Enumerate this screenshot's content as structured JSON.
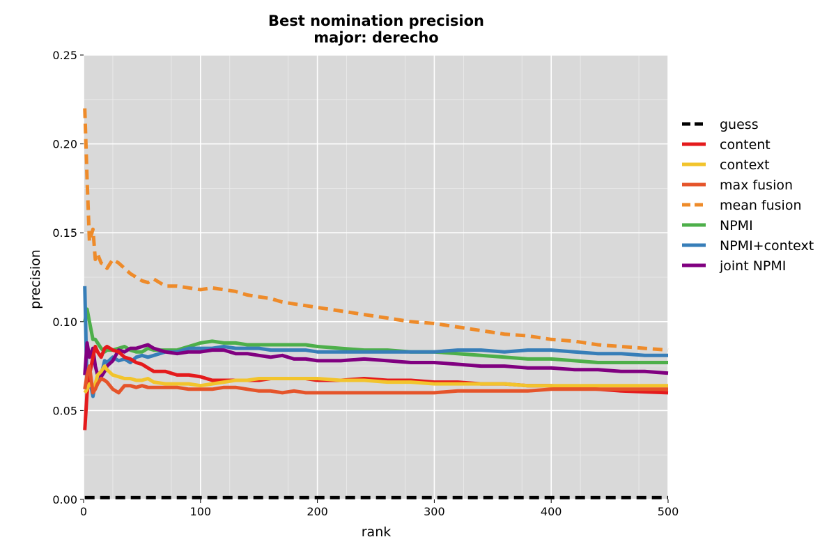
{
  "chart_data": {
    "type": "line",
    "title": "Best nomination precision",
    "subtitle": "major: derecho",
    "xlabel": "rank",
    "ylabel": "precision",
    "xlim": [
      0,
      500
    ],
    "ylim": [
      0,
      0.25
    ],
    "xticks": [
      0,
      100,
      200,
      300,
      400,
      500
    ],
    "xtick_labels": [
      "0",
      "100",
      "200",
      "300",
      "400",
      "500"
    ],
    "yticks": [
      0.0,
      0.05,
      0.1,
      0.15,
      0.2,
      0.25
    ],
    "ytick_labels": [
      "0.00",
      "0.05",
      "0.10",
      "0.15",
      "0.20",
      "0.25"
    ],
    "grid": true,
    "legend_position": "outside-right",
    "x": [
      1,
      3,
      5,
      8,
      10,
      12,
      15,
      18,
      20,
      25,
      30,
      35,
      40,
      45,
      50,
      55,
      60,
      70,
      80,
      90,
      100,
      110,
      120,
      130,
      140,
      150,
      160,
      170,
      180,
      190,
      200,
      220,
      240,
      260,
      280,
      300,
      320,
      340,
      360,
      380,
      400,
      420,
      440,
      460,
      480,
      500
    ],
    "series": [
      {
        "name": "guess",
        "color": "#000000",
        "dash": true,
        "values": [
          0.001,
          0.001,
          0.001,
          0.001,
          0.001,
          0.001,
          0.001,
          0.001,
          0.001,
          0.001,
          0.001,
          0.001,
          0.001,
          0.001,
          0.001,
          0.001,
          0.001,
          0.001,
          0.001,
          0.001,
          0.001,
          0.001,
          0.001,
          0.001,
          0.001,
          0.001,
          0.001,
          0.001,
          0.001,
          0.001,
          0.001,
          0.001,
          0.001,
          0.001,
          0.001,
          0.001,
          0.001,
          0.001,
          0.001,
          0.001,
          0.001,
          0.001,
          0.001,
          0.001,
          0.001,
          0.001
        ]
      },
      {
        "name": "content",
        "color": "#e41a1c",
        "dash": false,
        "values": [
          0.039,
          0.06,
          0.07,
          0.08,
          0.086,
          0.083,
          0.08,
          0.085,
          0.086,
          0.084,
          0.083,
          0.08,
          0.079,
          0.077,
          0.076,
          0.074,
          0.072,
          0.072,
          0.07,
          0.07,
          0.069,
          0.067,
          0.067,
          0.067,
          0.067,
          0.067,
          0.068,
          0.068,
          0.068,
          0.068,
          0.067,
          0.067,
          0.068,
          0.067,
          0.067,
          0.066,
          0.066,
          0.065,
          0.065,
          0.064,
          0.064,
          0.063,
          0.062,
          0.061,
          0.0605,
          0.06
        ]
      },
      {
        "name": "context",
        "color": "#f2c42c",
        "dash": false,
        "values": [
          0.06,
          0.062,
          0.065,
          0.063,
          0.065,
          0.07,
          0.072,
          0.075,
          0.073,
          0.07,
          0.069,
          0.068,
          0.068,
          0.067,
          0.067,
          0.068,
          0.066,
          0.065,
          0.065,
          0.065,
          0.064,
          0.065,
          0.066,
          0.067,
          0.067,
          0.068,
          0.068,
          0.068,
          0.068,
          0.068,
          0.068,
          0.067,
          0.067,
          0.066,
          0.066,
          0.065,
          0.065,
          0.065,
          0.065,
          0.064,
          0.064,
          0.064,
          0.064,
          0.064,
          0.064,
          0.064
        ]
      },
      {
        "name": "max fusion",
        "color": "#e5542a",
        "dash": false,
        "values": [
          0.062,
          0.07,
          0.075,
          0.06,
          0.062,
          0.065,
          0.068,
          0.067,
          0.066,
          0.062,
          0.06,
          0.064,
          0.064,
          0.063,
          0.064,
          0.063,
          0.063,
          0.063,
          0.063,
          0.062,
          0.062,
          0.062,
          0.063,
          0.063,
          0.062,
          0.061,
          0.061,
          0.06,
          0.061,
          0.06,
          0.06,
          0.06,
          0.06,
          0.06,
          0.06,
          0.06,
          0.061,
          0.061,
          0.061,
          0.061,
          0.062,
          0.062,
          0.062,
          0.062,
          0.062,
          0.062
        ]
      },
      {
        "name": "mean fusion",
        "color": "#ee8b2a",
        "dash": true,
        "values": [
          0.22,
          0.18,
          0.145,
          0.152,
          0.135,
          0.138,
          0.133,
          0.132,
          0.13,
          0.135,
          0.133,
          0.13,
          0.127,
          0.125,
          0.123,
          0.122,
          0.124,
          0.12,
          0.12,
          0.119,
          0.118,
          0.119,
          0.118,
          0.117,
          0.115,
          0.114,
          0.113,
          0.111,
          0.11,
          0.109,
          0.108,
          0.106,
          0.104,
          0.102,
          0.1,
          0.099,
          0.097,
          0.095,
          0.093,
          0.092,
          0.09,
          0.089,
          0.087,
          0.086,
          0.085,
          0.084
        ]
      },
      {
        "name": "NPMI",
        "color": "#4daf4a",
        "dash": false,
        "values": [
          0.1,
          0.107,
          0.1,
          0.09,
          0.09,
          0.088,
          0.085,
          0.083,
          0.084,
          0.084,
          0.085,
          0.086,
          0.084,
          0.083,
          0.083,
          0.085,
          0.084,
          0.084,
          0.084,
          0.086,
          0.088,
          0.089,
          0.088,
          0.088,
          0.087,
          0.087,
          0.087,
          0.087,
          0.087,
          0.087,
          0.086,
          0.085,
          0.084,
          0.084,
          0.083,
          0.083,
          0.082,
          0.081,
          0.08,
          0.079,
          0.079,
          0.078,
          0.077,
          0.077,
          0.077,
          0.077
        ]
      },
      {
        "name": "NPMI+context",
        "color": "#377eb8",
        "dash": false,
        "values": [
          0.12,
          0.062,
          0.068,
          0.058,
          0.065,
          0.068,
          0.07,
          0.078,
          0.077,
          0.08,
          0.078,
          0.079,
          0.077,
          0.08,
          0.081,
          0.08,
          0.081,
          0.083,
          0.083,
          0.085,
          0.085,
          0.085,
          0.086,
          0.085,
          0.085,
          0.085,
          0.084,
          0.084,
          0.084,
          0.084,
          0.083,
          0.083,
          0.083,
          0.083,
          0.083,
          0.083,
          0.084,
          0.084,
          0.083,
          0.084,
          0.084,
          0.083,
          0.082,
          0.082,
          0.081,
          0.081
        ]
      },
      {
        "name": "joint NPMI",
        "color": "#800080",
        "dash": false,
        "values": [
          0.07,
          0.088,
          0.08,
          0.085,
          0.075,
          0.07,
          0.069,
          0.072,
          0.075,
          0.078,
          0.084,
          0.083,
          0.085,
          0.085,
          0.086,
          0.087,
          0.085,
          0.083,
          0.082,
          0.083,
          0.083,
          0.084,
          0.084,
          0.082,
          0.082,
          0.081,
          0.08,
          0.081,
          0.079,
          0.079,
          0.078,
          0.078,
          0.079,
          0.078,
          0.077,
          0.077,
          0.076,
          0.075,
          0.075,
          0.074,
          0.074,
          0.073,
          0.073,
          0.072,
          0.072,
          0.071
        ]
      }
    ]
  }
}
